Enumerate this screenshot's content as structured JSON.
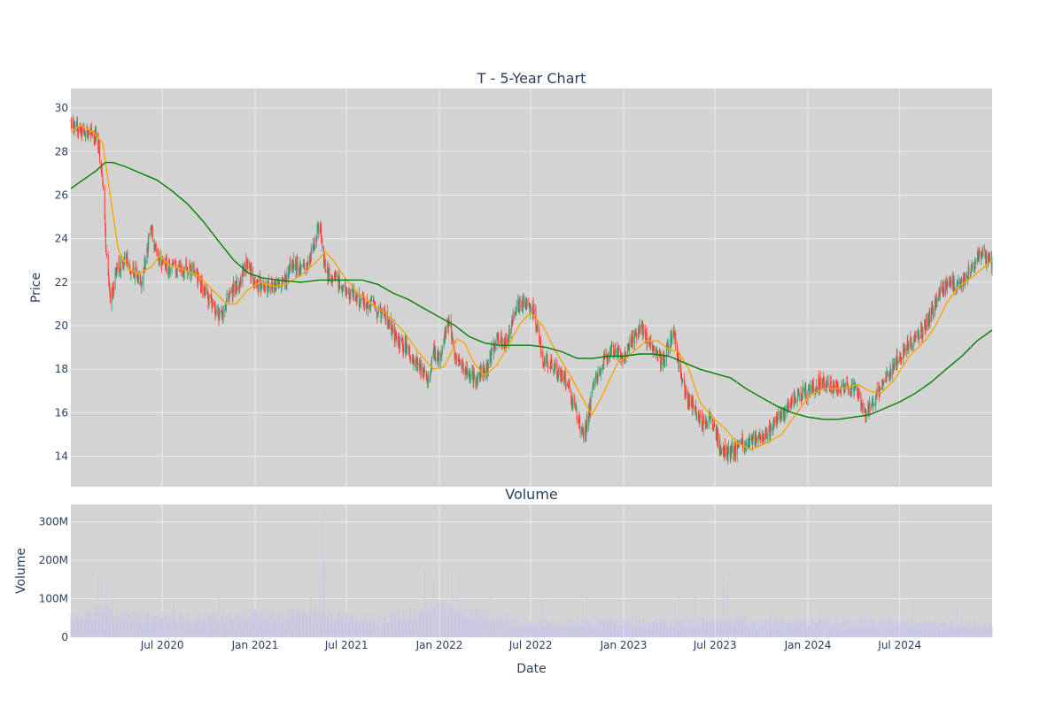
{
  "colors": {
    "plot_bg": "#d3d3d3",
    "grid": "#ebebeb",
    "text": "#2a3f5f",
    "up": "#3d9970",
    "down": "#ff4136",
    "ma_short": "#ffa500",
    "ma_long": "#008000",
    "volume": "#c8c8e6"
  },
  "chart_data": [
    {
      "type": "candlestick",
      "title": "T - 5-Year Chart",
      "ylabel": "Price",
      "xlim": [
        "2020-01-02",
        "2024-12-31"
      ],
      "ylim": [
        12.6,
        30.9
      ],
      "yticks": [
        14,
        16,
        18,
        20,
        22,
        24,
        26,
        28,
        30
      ],
      "grid": true,
      "price_path": [
        [
          "2020-01-02",
          29.4
        ],
        [
          "2020-01-20",
          29.1
        ],
        [
          "2020-02-10",
          28.8
        ],
        [
          "2020-02-24",
          28.6
        ],
        [
          "2020-03-05",
          26.5
        ],
        [
          "2020-03-12",
          23.5
        ],
        [
          "2020-03-20",
          21.0
        ],
        [
          "2020-04-01",
          22.5
        ],
        [
          "2020-04-20",
          23.0
        ],
        [
          "2020-05-05",
          22.5
        ],
        [
          "2020-05-20",
          22.0
        ],
        [
          "2020-06-01",
          23.5
        ],
        [
          "2020-06-08",
          24.6
        ],
        [
          "2020-06-20",
          23.2
        ],
        [
          "2020-07-05",
          22.7
        ],
        [
          "2020-08-01",
          22.6
        ],
        [
          "2020-09-01",
          22.5
        ],
        [
          "2020-10-01",
          21.3
        ],
        [
          "2020-10-25",
          20.3
        ],
        [
          "2020-11-10",
          21.5
        ],
        [
          "2020-12-01",
          22.0
        ],
        [
          "2020-12-15",
          23.0
        ],
        [
          "2021-01-01",
          21.9
        ],
        [
          "2021-02-01",
          21.8
        ],
        [
          "2021-03-01",
          22.0
        ],
        [
          "2021-03-15",
          22.8
        ],
        [
          "2021-04-15",
          22.8
        ],
        [
          "2021-05-01",
          24.0
        ],
        [
          "2021-05-10",
          24.5
        ],
        [
          "2021-05-20",
          22.5
        ],
        [
          "2021-06-15",
          22.0
        ],
        [
          "2021-07-15",
          21.3
        ],
        [
          "2021-08-20",
          20.9
        ],
        [
          "2021-09-15",
          20.5
        ],
        [
          "2021-10-05",
          19.5
        ],
        [
          "2021-11-01",
          18.8
        ],
        [
          "2021-11-25",
          18.0
        ],
        [
          "2021-12-10",
          17.3
        ],
        [
          "2021-12-20",
          18.8
        ],
        [
          "2022-01-01",
          18.5
        ],
        [
          "2022-01-20",
          20.3
        ],
        [
          "2022-02-01",
          18.6
        ],
        [
          "2022-02-20",
          18.0
        ],
        [
          "2022-03-15",
          17.5
        ],
        [
          "2022-04-05",
          18.0
        ],
        [
          "2022-04-25",
          19.5
        ],
        [
          "2022-05-15",
          19.2
        ],
        [
          "2022-06-01",
          20.8
        ],
        [
          "2022-06-15",
          21.0
        ],
        [
          "2022-07-05",
          20.8
        ],
        [
          "2022-07-25",
          18.5
        ],
        [
          "2022-08-20",
          18.0
        ],
        [
          "2022-09-15",
          17.0
        ],
        [
          "2022-10-05",
          15.5
        ],
        [
          "2022-10-15",
          14.9
        ],
        [
          "2022-11-05",
          17.5
        ],
        [
          "2022-11-25",
          18.5
        ],
        [
          "2022-12-15",
          19.0
        ],
        [
          "2023-01-01",
          18.4
        ],
        [
          "2023-01-20",
          19.5
        ],
        [
          "2023-02-05",
          20.0
        ],
        [
          "2023-03-01",
          18.8
        ],
        [
          "2023-03-20",
          18.3
        ],
        [
          "2023-04-10",
          19.8
        ],
        [
          "2023-04-25",
          17.5
        ],
        [
          "2023-05-10",
          16.5
        ],
        [
          "2023-06-05",
          15.5
        ],
        [
          "2023-06-25",
          15.8
        ],
        [
          "2023-07-10",
          14.4
        ],
        [
          "2023-07-30",
          14.1
        ],
        [
          "2023-08-25",
          14.6
        ],
        [
          "2023-09-25",
          14.8
        ],
        [
          "2023-10-20",
          15.3
        ],
        [
          "2023-11-15",
          16.1
        ],
        [
          "2023-12-10",
          16.8
        ],
        [
          "2024-01-05",
          17.0
        ],
        [
          "2024-01-25",
          17.4
        ],
        [
          "2024-02-20",
          17.2
        ],
        [
          "2024-03-10",
          17.1
        ],
        [
          "2024-04-05",
          17.2
        ],
        [
          "2024-04-25",
          16.0
        ],
        [
          "2024-05-20",
          17.0
        ],
        [
          "2024-06-15",
          18.0
        ],
        [
          "2024-07-10",
          19.0
        ],
        [
          "2024-08-10",
          19.6
        ],
        [
          "2024-09-01",
          20.5
        ],
        [
          "2024-09-15",
          21.5
        ],
        [
          "2024-10-10",
          21.9
        ],
        [
          "2024-11-01",
          22.0
        ],
        [
          "2024-11-25",
          22.9
        ],
        [
          "2024-12-10",
          23.4
        ],
        [
          "2024-12-31",
          22.8
        ]
      ],
      "ma_short": [
        [
          "2020-01-02",
          28.9
        ],
        [
          "2020-01-20",
          29.2
        ],
        [
          "2020-02-15",
          28.9
        ],
        [
          "2020-03-05",
          28.4
        ],
        [
          "2020-03-20",
          26.0
        ],
        [
          "2020-04-05",
          23.5
        ],
        [
          "2020-04-25",
          22.6
        ],
        [
          "2020-05-15",
          22.4
        ],
        [
          "2020-06-10",
          22.7
        ],
        [
          "2020-06-25",
          23.2
        ],
        [
          "2020-07-15",
          22.8
        ],
        [
          "2020-08-10",
          22.6
        ],
        [
          "2020-09-10",
          22.3
        ],
        [
          "2020-10-15",
          21.5
        ],
        [
          "2020-11-05",
          21.0
        ],
        [
          "2020-11-25",
          21.0
        ],
        [
          "2020-12-15",
          21.6
        ],
        [
          "2021-01-10",
          22.0
        ],
        [
          "2021-02-10",
          21.8
        ],
        [
          "2021-03-01",
          21.9
        ],
        [
          "2021-04-01",
          22.3
        ],
        [
          "2021-05-01",
          22.9
        ],
        [
          "2021-05-20",
          23.4
        ],
        [
          "2021-06-05",
          23.0
        ],
        [
          "2021-06-25",
          22.3
        ],
        [
          "2021-07-20",
          21.6
        ],
        [
          "2021-08-20",
          21.0
        ],
        [
          "2021-09-15",
          20.6
        ],
        [
          "2021-10-20",
          19.8
        ],
        [
          "2021-11-20",
          18.8
        ],
        [
          "2021-12-20",
          18.0
        ],
        [
          "2022-01-10",
          18.1
        ],
        [
          "2022-01-25",
          18.8
        ],
        [
          "2022-02-05",
          19.4
        ],
        [
          "2022-02-20",
          19.2
        ],
        [
          "2022-03-10",
          18.3
        ],
        [
          "2022-04-01",
          17.7
        ],
        [
          "2022-04-25",
          18.2
        ],
        [
          "2022-05-15",
          19.0
        ],
        [
          "2022-06-10",
          20.1
        ],
        [
          "2022-07-01",
          20.6
        ],
        [
          "2022-07-25",
          20.0
        ],
        [
          "2022-08-20",
          18.8
        ],
        [
          "2022-09-20",
          17.6
        ],
        [
          "2022-10-20",
          16.3
        ],
        [
          "2022-10-30",
          15.9
        ],
        [
          "2022-11-20",
          16.8
        ],
        [
          "2022-12-20",
          18.3
        ],
        [
          "2023-01-15",
          18.7
        ],
        [
          "2023-02-15",
          19.3
        ],
        [
          "2023-03-10",
          19.3
        ],
        [
          "2023-04-01",
          18.9
        ],
        [
          "2023-04-20",
          18.8
        ],
        [
          "2023-05-10",
          18.0
        ],
        [
          "2023-06-01",
          16.5
        ],
        [
          "2023-06-25",
          15.8
        ],
        [
          "2023-07-20",
          15.3
        ],
        [
          "2023-08-15",
          14.6
        ],
        [
          "2023-09-10",
          14.3
        ],
        [
          "2023-10-10",
          14.6
        ],
        [
          "2023-11-10",
          15.0
        ],
        [
          "2023-12-10",
          16.0
        ],
        [
          "2024-01-05",
          16.8
        ],
        [
          "2024-02-01",
          17.1
        ],
        [
          "2024-03-10",
          17.1
        ],
        [
          "2024-04-10",
          17.3
        ],
        [
          "2024-05-01",
          17.0
        ],
        [
          "2024-05-25",
          16.9
        ],
        [
          "2024-06-20",
          17.5
        ],
        [
          "2024-07-20",
          18.6
        ],
        [
          "2024-08-20",
          19.3
        ],
        [
          "2024-09-10",
          20.0
        ],
        [
          "2024-10-01",
          21.0
        ],
        [
          "2024-10-25",
          21.8
        ],
        [
          "2024-11-20",
          22.2
        ],
        [
          "2024-12-31",
          23.0
        ]
      ],
      "ma_long": [
        [
          "2020-01-02",
          26.3
        ],
        [
          "2020-01-20",
          26.6
        ],
        [
          "2020-02-20",
          27.1
        ],
        [
          "2020-03-10",
          27.5
        ],
        [
          "2020-03-25",
          27.5
        ],
        [
          "2020-04-20",
          27.3
        ],
        [
          "2020-05-20",
          27.0
        ],
        [
          "2020-06-20",
          26.7
        ],
        [
          "2020-07-20",
          26.2
        ],
        [
          "2020-08-20",
          25.6
        ],
        [
          "2020-09-20",
          24.8
        ],
        [
          "2020-10-20",
          23.9
        ],
        [
          "2020-11-20",
          23.0
        ],
        [
          "2020-12-20",
          22.4
        ],
        [
          "2021-01-15",
          22.2
        ],
        [
          "2021-02-15",
          22.1
        ],
        [
          "2021-04-01",
          22.0
        ],
        [
          "2021-05-10",
          22.1
        ],
        [
          "2021-06-05",
          22.1
        ],
        [
          "2021-07-01",
          22.1
        ],
        [
          "2021-08-01",
          22.1
        ],
        [
          "2021-09-01",
          21.9
        ],
        [
          "2021-10-01",
          21.5
        ],
        [
          "2021-11-01",
          21.2
        ],
        [
          "2021-12-01",
          20.8
        ],
        [
          "2022-01-01",
          20.4
        ],
        [
          "2022-02-01",
          20.0
        ],
        [
          "2022-03-01",
          19.5
        ],
        [
          "2022-04-01",
          19.2
        ],
        [
          "2022-05-01",
          19.1
        ],
        [
          "2022-06-01",
          19.1
        ],
        [
          "2022-07-01",
          19.1
        ],
        [
          "2022-08-01",
          19.0
        ],
        [
          "2022-09-01",
          18.8
        ],
        [
          "2022-10-01",
          18.5
        ],
        [
          "2022-11-01",
          18.5
        ],
        [
          "2022-12-01",
          18.6
        ],
        [
          "2023-01-01",
          18.6
        ],
        [
          "2023-02-01",
          18.7
        ],
        [
          "2023-03-01",
          18.7
        ],
        [
          "2023-04-01",
          18.6
        ],
        [
          "2023-05-01",
          18.3
        ],
        [
          "2023-06-01",
          18.0
        ],
        [
          "2023-07-01",
          17.8
        ],
        [
          "2023-08-01",
          17.6
        ],
        [
          "2023-09-01",
          17.1
        ],
        [
          "2023-10-01",
          16.7
        ],
        [
          "2023-11-01",
          16.3
        ],
        [
          "2023-12-01",
          16.0
        ],
        [
          "2024-01-01",
          15.8
        ],
        [
          "2024-02-01",
          15.7
        ],
        [
          "2024-03-01",
          15.7
        ],
        [
          "2024-04-01",
          15.8
        ],
        [
          "2024-05-01",
          15.9
        ],
        [
          "2024-06-01",
          16.2
        ],
        [
          "2024-07-01",
          16.5
        ],
        [
          "2024-08-01",
          16.9
        ],
        [
          "2024-09-01",
          17.4
        ],
        [
          "2024-10-01",
          18.0
        ],
        [
          "2024-11-01",
          18.6
        ],
        [
          "2024-12-01",
          19.3
        ],
        [
          "2024-12-31",
          19.8
        ]
      ]
    },
    {
      "type": "bar",
      "title": "Volume",
      "ylabel": "Volume",
      "xlabel": "Date",
      "xlim": [
        "2020-01-02",
        "2024-12-31"
      ],
      "ylim": [
        0,
        345000000
      ],
      "yticks": [
        0,
        100000000,
        200000000,
        300000000
      ],
      "yticklabels": [
        "0",
        "100M",
        "200M",
        "300M"
      ],
      "xticks": [
        "2020-07-01",
        "2021-01-01",
        "2021-07-01",
        "2022-01-01",
        "2022-07-01",
        "2023-01-01",
        "2023-07-01",
        "2024-01-01",
        "2024-07-01"
      ],
      "xticklabels": [
        "Jul 2020",
        "Jan 2021",
        "Jul 2021",
        "Jan 2022",
        "Jul 2022",
        "Jan 2023",
        "Jul 2023",
        "Jan 2024",
        "Jul 2024"
      ],
      "baseline_volume": [
        [
          "2020-01-02",
          45000000
        ],
        [
          "2020-03-01",
          70000000
        ],
        [
          "2020-04-01",
          55000000
        ],
        [
          "2020-09-01",
          48000000
        ],
        [
          "2021-01-01",
          55000000
        ],
        [
          "2021-05-01",
          60000000
        ],
        [
          "2021-09-01",
          45000000
        ],
        [
          "2022-01-01",
          75000000
        ],
        [
          "2022-03-01",
          60000000
        ],
        [
          "2022-07-01",
          35000000
        ],
        [
          "2023-01-01",
          38000000
        ],
        [
          "2023-06-01",
          40000000
        ],
        [
          "2024-01-01",
          38000000
        ],
        [
          "2024-12-31",
          32000000
        ]
      ],
      "volume_spikes": [
        [
          "2020-02-25",
          160000000
        ],
        [
          "2020-03-12",
          150000000
        ],
        [
          "2020-03-24",
          110000000
        ],
        [
          "2020-07-23",
          95000000
        ],
        [
          "2020-10-22",
          115000000
        ],
        [
          "2021-01-27",
          95000000
        ],
        [
          "2021-04-22",
          105000000
        ],
        [
          "2021-05-10",
          145000000
        ],
        [
          "2021-05-17",
          330000000
        ],
        [
          "2021-05-18",
          210000000
        ],
        [
          "2021-12-03",
          175000000
        ],
        [
          "2021-12-20",
          145000000
        ],
        [
          "2022-01-26",
          180000000
        ],
        [
          "2022-02-07",
          170000000
        ],
        [
          "2022-04-11",
          150000000
        ],
        [
          "2022-07-21",
          100000000
        ],
        [
          "2022-10-20",
          105000000
        ],
        [
          "2023-04-20",
          125000000
        ],
        [
          "2023-05-23",
          105000000
        ],
        [
          "2023-07-17",
          155000000
        ],
        [
          "2023-07-26",
          130000000
        ],
        [
          "2023-10-19",
          90000000
        ],
        [
          "2024-01-24",
          80000000
        ],
        [
          "2024-04-24",
          95000000
        ],
        [
          "2024-07-24",
          95000000
        ],
        [
          "2024-10-23",
          75000000
        ]
      ]
    }
  ]
}
